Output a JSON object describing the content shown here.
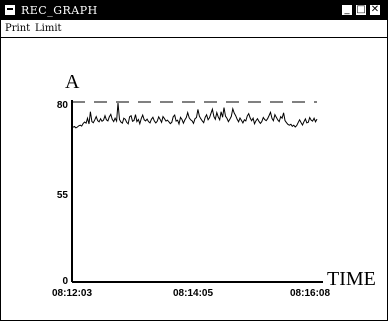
{
  "window": {
    "title": "REC_GRAPH",
    "buttons": {
      "minimize": "_",
      "maximize": "□",
      "close": "✕"
    }
  },
  "menu": {
    "items": [
      "Print",
      "Limit"
    ]
  },
  "chart_data": {
    "type": "line",
    "xlabel": "TIME",
    "ylabel": "A",
    "ylim": [
      0,
      80
    ],
    "yticks": [
      "80",
      "55",
      "0"
    ],
    "xticks": [
      "08:12:03",
      "08:14:05",
      "08:16:08"
    ],
    "limit_line": 80,
    "series": [
      {
        "values": [
          68.8,
          69.1,
          68.5,
          68.9,
          69.4,
          69.7,
          69.3,
          70.5,
          71.1,
          70.6,
          72.8,
          70.2,
          75.7,
          71.3,
          70.8,
          72.1,
          73.5,
          71.7,
          71.2,
          72.6,
          71.4,
          71.9,
          73.9,
          72.1,
          71.6,
          73.4,
          74.5,
          72.3,
          71.3,
          72.8,
          71.5,
          79.5,
          72.2,
          71.1,
          70.6,
          72.8,
          72.3,
          71.0,
          70.3,
          73.4,
          73.9,
          71.4,
          71.8,
          74.4,
          71.3,
          72.2,
          70.3,
          72.7,
          74.2,
          72.1,
          71.6,
          72.4,
          71.3,
          70.7,
          72.3,
          73.2,
          71.6,
          70.7,
          71.4,
          73.4,
          72.3,
          71.0,
          73.5,
          72.6,
          71.5,
          71.9,
          71.2,
          70.4,
          71.0,
          73.4,
          74.2,
          71.5,
          71.9,
          70.2,
          73.2,
          72.3,
          70.6,
          72.0,
          73.1,
          75.3,
          73.0,
          72.1,
          71.6,
          70.5,
          72.6,
          73.1,
          76.7,
          73.7,
          72.6,
          71.6,
          70.8,
          73.2,
          74.3,
          72.1,
          73.0,
          75.0,
          76.8,
          73.5,
          72.3,
          75.3,
          73.4,
          72.1,
          75.7,
          73.2,
          77.5,
          73.7,
          72.7,
          71.3,
          72.4,
          73.6,
          77.0,
          75.1,
          73.9,
          72.4,
          71.2,
          72.9,
          71.8,
          70.7,
          72.1,
          71.6,
          73.8,
          74.8,
          72.9,
          71.7,
          72.8,
          70.3,
          71.7,
          72.6,
          71.4,
          70.5,
          71.3,
          73.1,
          72.2,
          71.7,
          72.6,
          74.0,
          75.4,
          72.7,
          71.7,
          74.4,
          73.2,
          72.0,
          71.3,
          73.5,
          72.8,
          75.2,
          71.8,
          70.8,
          70.0,
          69.7,
          70.1,
          69.2,
          69.7,
          68.9,
          69.5,
          70.8,
          72.1,
          70.9,
          69.8,
          71.2,
          72.5,
          70.7,
          71.0,
          73.1,
          71.9,
          71.5,
          72.8,
          71.2,
          72.4
        ]
      }
    ]
  }
}
